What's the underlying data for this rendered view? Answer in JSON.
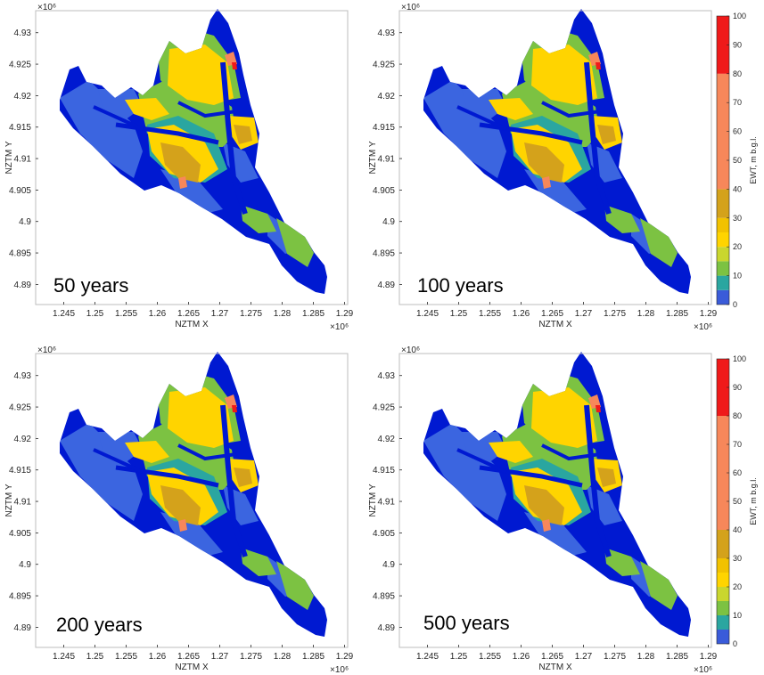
{
  "chart_data": [
    {
      "type": "heatmap",
      "panel_label": "50 years",
      "xlabel": "NZTM X",
      "ylabel": "NZTM Y",
      "x_ticks": [
        "1.245",
        "1.25",
        "1.255",
        "1.26",
        "1.265",
        "1.27",
        "1.275",
        "1.28",
        "1.285",
        "1.29"
      ],
      "y_ticks": [
        "4.93",
        "4.925",
        "4.92",
        "4.915",
        "4.91",
        "4.905",
        "4.9",
        "4.895",
        "4.89"
      ],
      "x_exponent": "×10⁶",
      "y_exponent": "×10⁶",
      "xlim": [
        1.2405,
        1.2905
      ],
      "ylim": [
        4.8868,
        4.9335
      ],
      "colorbar": false
    },
    {
      "type": "heatmap",
      "panel_label": "100 years",
      "xlabel": "NZTM X",
      "ylabel": "NZTM Y",
      "x_ticks": [
        "1.245",
        "1.25",
        "1.255",
        "1.26",
        "1.265",
        "1.27",
        "1.275",
        "1.28",
        "1.285",
        "1.29"
      ],
      "y_ticks": [
        "4.93",
        "4.925",
        "4.92",
        "4.915",
        "4.91",
        "4.905",
        "4.9",
        "4.895",
        "4.89"
      ],
      "x_exponent": "×10⁶",
      "y_exponent": "×10⁶",
      "xlim": [
        1.2405,
        1.2905
      ],
      "ylim": [
        4.8868,
        4.9335
      ],
      "colorbar": true
    },
    {
      "type": "heatmap",
      "panel_label": "200 years",
      "xlabel": "NZTM X",
      "ylabel": "NZTM Y",
      "x_ticks": [
        "1.245",
        "1.25",
        "1.255",
        "1.26",
        "1.265",
        "1.27",
        "1.275",
        "1.28",
        "1.285",
        "1.29"
      ],
      "y_ticks": [
        "4.93",
        "4.925",
        "4.92",
        "4.915",
        "4.91",
        "4.905",
        "4.9",
        "4.895",
        "4.89"
      ],
      "x_exponent": "×10⁶",
      "y_exponent": "×10⁶",
      "xlim": [
        1.2405,
        1.2905
      ],
      "ylim": [
        4.8868,
        4.9335
      ],
      "colorbar": false
    },
    {
      "type": "heatmap",
      "panel_label": "500 years",
      "xlabel": "NZTM X",
      "ylabel": "NZTM Y",
      "x_ticks": [
        "1.245",
        "1.25",
        "1.255",
        "1.26",
        "1.265",
        "1.27",
        "1.275",
        "1.28",
        "1.285",
        "1.29"
      ],
      "y_ticks": [
        "4.93",
        "4.925",
        "4.92",
        "4.915",
        "4.91",
        "4.905",
        "4.9",
        "4.895",
        "4.89"
      ],
      "x_exponent": "×10⁶",
      "y_exponent": "×10⁶",
      "xlim": [
        1.2405,
        1.2905
      ],
      "ylim": [
        4.8868,
        4.9335
      ],
      "colorbar": true
    }
  ],
  "colorbar": {
    "label": "EWT, m b.g.l.",
    "ticks": [
      "0",
      "10",
      "20",
      "30",
      "40",
      "50",
      "60",
      "70",
      "80",
      "90",
      "100"
    ],
    "bands": [
      {
        "from": 0,
        "to": 5,
        "color": "#3a5bd9"
      },
      {
        "from": 5,
        "to": 10,
        "color": "#2aa6a0"
      },
      {
        "from": 10,
        "to": 15,
        "color": "#7cc242"
      },
      {
        "from": 15,
        "to": 20,
        "color": "#c9d62e"
      },
      {
        "from": 20,
        "to": 25,
        "color": "#ffd400"
      },
      {
        "from": 25,
        "to": 30,
        "color": "#f2c200"
      },
      {
        "from": 30,
        "to": 40,
        "color": "#d4a21b"
      },
      {
        "from": 40,
        "to": 80,
        "color": "#f7875a"
      },
      {
        "from": 80,
        "to": 100,
        "color": "#ef1a1a"
      }
    ]
  },
  "map_colors": {
    "deep_blue": "#0019d1",
    "mid_blue": "#3b65e0",
    "teal": "#2aa6a0",
    "green": "#7cc242",
    "yellow": "#ffd400",
    "ochre": "#d4a21b",
    "orange": "#f7875a",
    "red": "#ef1a1a"
  }
}
